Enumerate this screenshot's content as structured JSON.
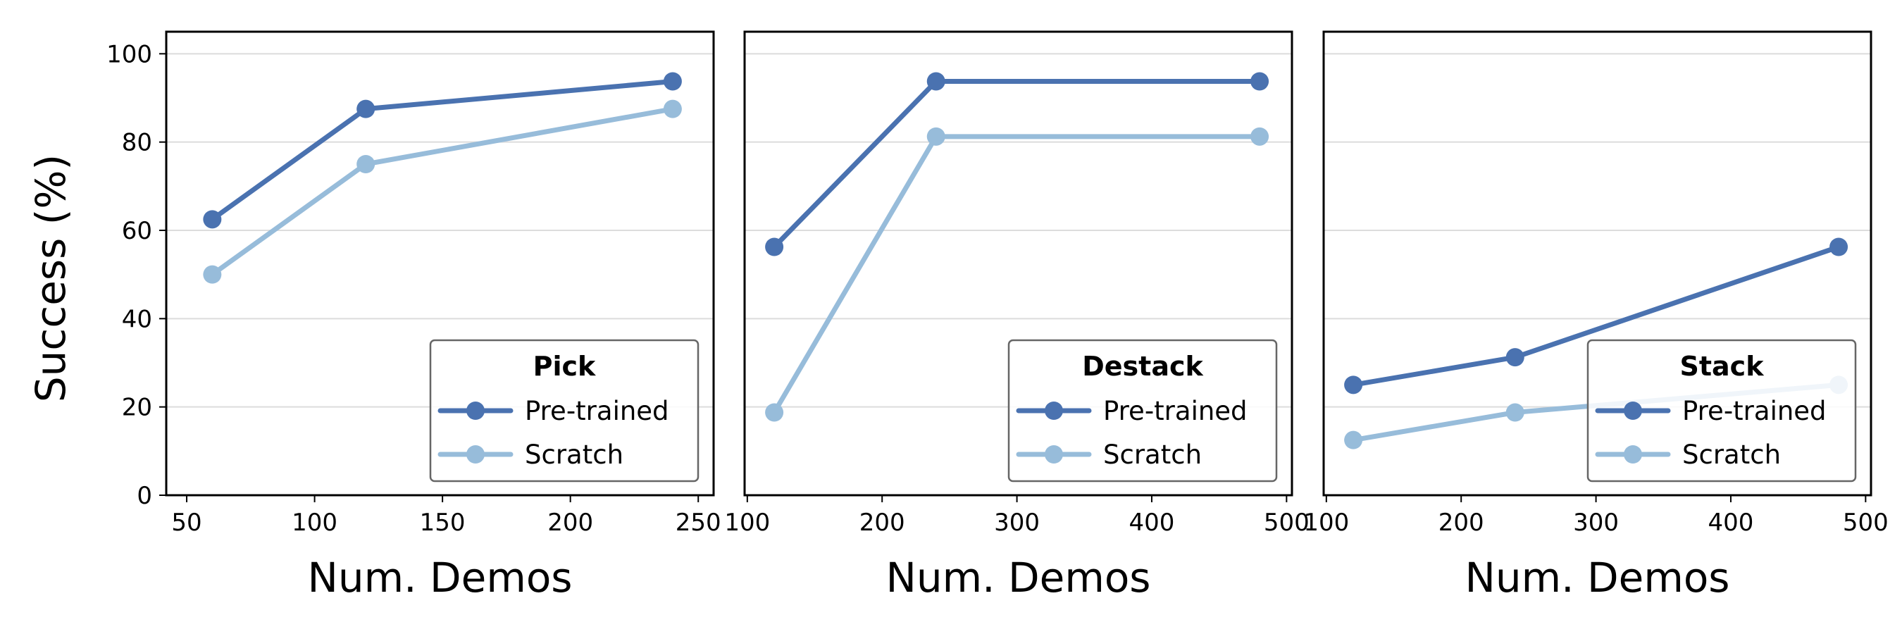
{
  "figure": {
    "ylabel": "Success (%)",
    "series_names": [
      "Pre-trained",
      "Scratch"
    ],
    "colors": {
      "pretrained": "#4a72b0",
      "scratch": "#97bcda"
    }
  },
  "chart_data": [
    {
      "type": "line",
      "legend_title": "Pick",
      "xlabel": "Num. Demos",
      "ylabel": "Success (%)",
      "x": [
        60,
        120,
        240
      ],
      "xlim": [
        42,
        256
      ],
      "xticks": [
        50,
        100,
        150,
        200,
        250
      ],
      "ylim": [
        0,
        105
      ],
      "yticks": [
        0,
        20,
        40,
        60,
        80,
        100
      ],
      "grid": "horizontal",
      "legend_position": "bottom-right",
      "series": [
        {
          "name": "Pre-trained",
          "color": "#4a72b0",
          "values": [
            62.5,
            87.5,
            93.75
          ]
        },
        {
          "name": "Scratch",
          "color": "#97bcda",
          "values": [
            50,
            75,
            87.5
          ]
        }
      ]
    },
    {
      "type": "line",
      "legend_title": "Destack",
      "xlabel": "Num. Demos",
      "x": [
        120,
        240,
        480
      ],
      "xlim": [
        98,
        504
      ],
      "xticks": [
        100,
        200,
        300,
        400,
        500
      ],
      "ylim": [
        0,
        105
      ],
      "yticks": [
        0,
        20,
        40,
        60,
        80,
        100
      ],
      "grid": "horizontal",
      "legend_position": "bottom-right",
      "series": [
        {
          "name": "Pre-trained",
          "color": "#4a72b0",
          "values": [
            56.25,
            93.75,
            93.75
          ]
        },
        {
          "name": "Scratch",
          "color": "#97bcda",
          "values": [
            18.75,
            81.25,
            81.25
          ]
        }
      ]
    },
    {
      "type": "line",
      "legend_title": "Stack",
      "xlabel": "Num. Demos",
      "x": [
        120,
        240,
        480
      ],
      "xlim": [
        98,
        504
      ],
      "xticks": [
        100,
        200,
        300,
        400,
        500
      ],
      "ylim": [
        0,
        105
      ],
      "yticks": [
        0,
        20,
        40,
        60,
        80,
        100
      ],
      "grid": "horizontal",
      "legend_position": "bottom-right",
      "series": [
        {
          "name": "Pre-trained",
          "color": "#4a72b0",
          "values": [
            25,
            31.25,
            56.25
          ]
        },
        {
          "name": "Scratch",
          "color": "#97bcda",
          "values": [
            12.5,
            18.75,
            25
          ]
        }
      ]
    }
  ]
}
